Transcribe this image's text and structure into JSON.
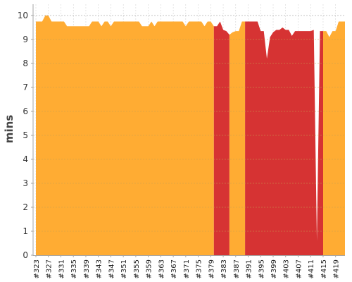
{
  "chart_data": {
    "type": "area",
    "title": "",
    "xlabel": "",
    "ylabel": "mins",
    "ylim": [
      0,
      10
    ],
    "yticks": [
      0,
      1,
      2,
      3,
      4,
      5,
      6,
      7,
      8,
      9,
      10
    ],
    "grid": true,
    "legend": "none",
    "colors": {
      "ok": "#ffac33",
      "fail": "#d63333",
      "grid": "#c8a050",
      "axis": "#a6a6a6"
    },
    "x": [
      323,
      324,
      325,
      326,
      327,
      328,
      329,
      330,
      331,
      332,
      333,
      334,
      335,
      336,
      337,
      338,
      339,
      340,
      341,
      342,
      343,
      344,
      345,
      346,
      347,
      348,
      349,
      350,
      351,
      352,
      353,
      354,
      355,
      356,
      357,
      358,
      359,
      360,
      361,
      362,
      363,
      364,
      365,
      366,
      367,
      368,
      369,
      370,
      371,
      372,
      373,
      374,
      375,
      376,
      377,
      378,
      379,
      380,
      381,
      382,
      383,
      384,
      385,
      386,
      387,
      388,
      389,
      390,
      391,
      392,
      393,
      394,
      395,
      396,
      397,
      398,
      399,
      400,
      401,
      402,
      403,
      404,
      405,
      406,
      407,
      408,
      409,
      410,
      411,
      412,
      413,
      414,
      415,
      416,
      417,
      418,
      419,
      420,
      421,
      422
    ],
    "values": [
      9.75,
      9.75,
      9.75,
      10.0,
      10.0,
      9.75,
      9.75,
      9.75,
      9.75,
      9.75,
      9.55,
      9.55,
      9.55,
      9.55,
      9.55,
      9.55,
      9.55,
      9.55,
      9.75,
      9.75,
      9.75,
      9.55,
      9.75,
      9.75,
      9.55,
      9.75,
      9.75,
      9.75,
      9.75,
      9.75,
      9.75,
      9.75,
      9.75,
      9.75,
      9.55,
      9.55,
      9.55,
      9.75,
      9.55,
      9.75,
      9.75,
      9.75,
      9.75,
      9.75,
      9.75,
      9.75,
      9.75,
      9.75,
      9.55,
      9.75,
      9.75,
      9.75,
      9.75,
      9.75,
      9.55,
      9.75,
      9.75,
      9.55,
      9.55,
      9.75,
      9.4,
      9.35,
      9.2,
      9.3,
      9.35,
      9.35,
      9.75,
      9.75,
      9.75,
      9.75,
      9.75,
      9.75,
      9.35,
      9.35,
      8.2,
      9.1,
      9.3,
      9.4,
      9.4,
      9.5,
      9.4,
      9.4,
      9.15,
      9.35,
      9.35,
      9.35,
      9.35,
      9.35,
      9.35,
      9.4,
      0.6,
      9.35,
      9.35,
      9.35,
      9.1,
      9.35,
      9.35,
      9.75,
      9.75,
      9.75
    ],
    "status_runs": [
      {
        "status": "ok",
        "from": 323,
        "to": 380
      },
      {
        "status": "fail",
        "from": 380,
        "to": 385
      },
      {
        "status": "ok",
        "from": 385,
        "to": 390
      },
      {
        "status": "fail",
        "from": 390,
        "to": 415
      },
      {
        "status": "ok",
        "from": 415,
        "to": 422
      }
    ],
    "xtick_labels": [
      "#323",
      "#327",
      "#331",
      "#335",
      "#339",
      "#343",
      "#347",
      "#351",
      "#355",
      "#359",
      "#363",
      "#367",
      "#371",
      "#375",
      "#379",
      "#383",
      "#387",
      "#391",
      "#395",
      "#399",
      "#403",
      "#407",
      "#411",
      "#415",
      "#419"
    ]
  }
}
